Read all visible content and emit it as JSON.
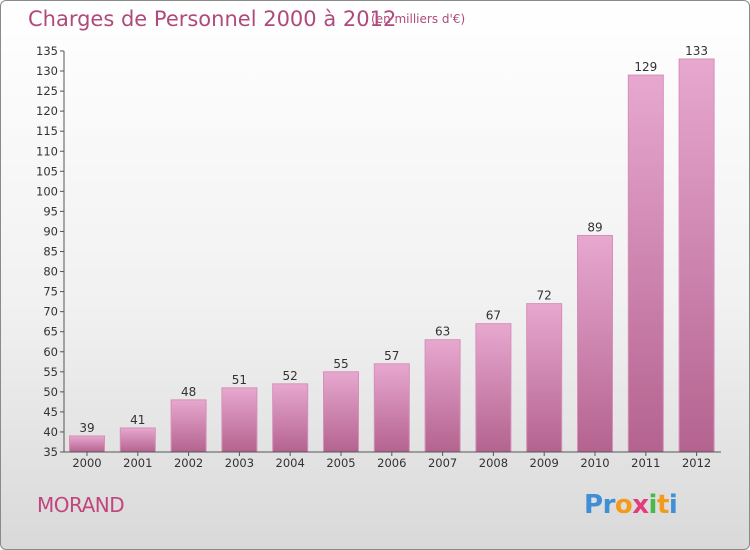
{
  "header": {
    "title": "Charges de Personnel 2000 à 2012",
    "unit": "(en milliers d'€)"
  },
  "footer": {
    "city": "MORAND",
    "logo": [
      "P",
      "r",
      "o",
      "x",
      "i",
      "t",
      "i"
    ],
    "logo_colors": [
      "#3f8fd6",
      "#3f8fd6",
      "#f29a1b",
      "#e23c7c",
      "#4bb84b",
      "#f29a1b",
      "#3f8fd6"
    ]
  },
  "colors": {
    "bar_light": "#e7a8cf",
    "bar_dark": "#b4638f",
    "bar_edge": "#d690b8",
    "label": "#333333",
    "axis": "#555555"
  },
  "chart_data": {
    "type": "bar",
    "title": "Charges de Personnel 2000 à 2012",
    "subtitle": "(en milliers d'€)",
    "xlabel": "",
    "ylabel": "",
    "categories": [
      "2000",
      "2001",
      "2002",
      "2003",
      "2004",
      "2005",
      "2006",
      "2007",
      "2008",
      "2009",
      "2010",
      "2011",
      "2012"
    ],
    "values": [
      39,
      41,
      48,
      51,
      52,
      55,
      57,
      63,
      67,
      72,
      89,
      129,
      133
    ],
    "ylim": [
      35,
      135
    ],
    "yticks": [
      35,
      40,
      45,
      50,
      55,
      60,
      65,
      70,
      75,
      80,
      85,
      90,
      95,
      100,
      105,
      110,
      115,
      120,
      125,
      130,
      135
    ],
    "grid": false
  }
}
